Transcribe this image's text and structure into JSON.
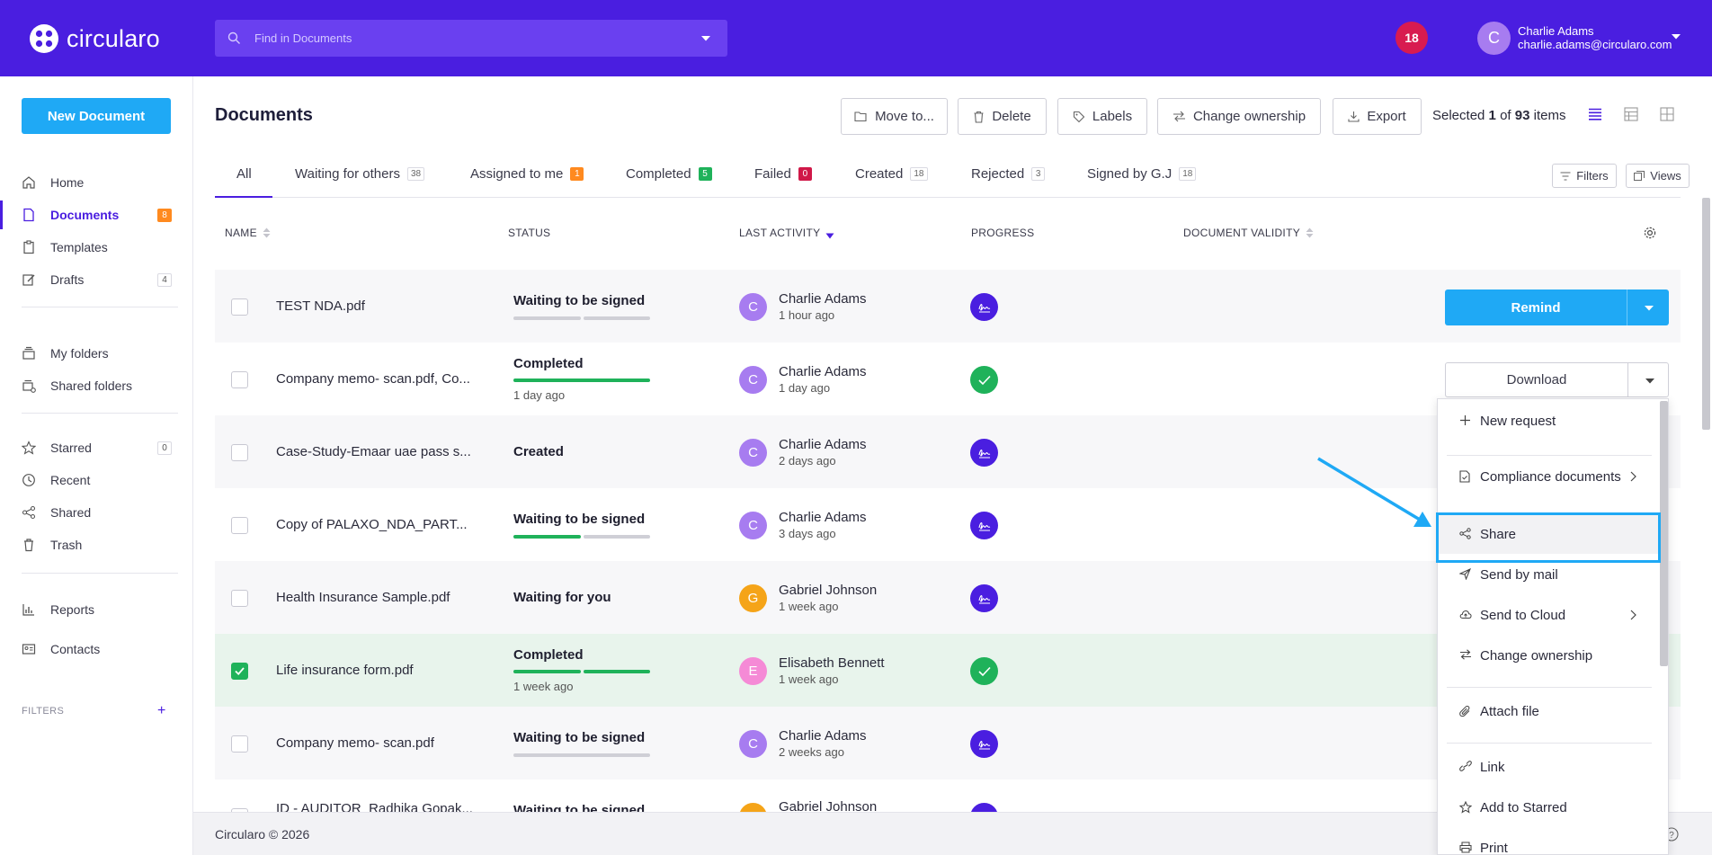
{
  "app": {
    "name": "circularo"
  },
  "search": {
    "placeholder": "Find in Documents"
  },
  "header": {
    "notifications_count": "18",
    "user": {
      "initial": "C",
      "name": "Charlie Adams",
      "email": "charlie.adams@circularo.com"
    }
  },
  "sidebar": {
    "new_document": "New Document",
    "items": [
      {
        "label": "Home",
        "icon": "home-icon"
      },
      {
        "label": "Documents",
        "icon": "document-icon",
        "badge": "8"
      },
      {
        "label": "Templates",
        "icon": "clipboard-icon"
      },
      {
        "label": "Drafts",
        "icon": "pencil-icon",
        "badge": "4"
      },
      {
        "label": "My folders",
        "icon": "folder-stack-icon"
      },
      {
        "label": "Shared folders",
        "icon": "shared-folder-icon"
      },
      {
        "label": "Starred",
        "icon": "star-icon",
        "badge": "0"
      },
      {
        "label": "Recent",
        "icon": "clock-icon"
      },
      {
        "label": "Shared",
        "icon": "share-icon"
      },
      {
        "label": "Trash",
        "icon": "trash-icon"
      },
      {
        "label": "Reports",
        "icon": "bar-chart-icon"
      },
      {
        "label": "Contacts",
        "icon": "contacts-icon"
      }
    ],
    "filters_label": "FILTERS"
  },
  "main": {
    "title": "Documents",
    "toolbar": {
      "move": "Move to...",
      "delete": "Delete",
      "labels": "Labels",
      "change_ownership": "Change ownership",
      "export": "Export"
    },
    "selection": {
      "prefix": "Selected",
      "count": "1",
      "of": "of",
      "total": "93",
      "suffix": "items"
    },
    "tabs": [
      {
        "label": "All",
        "count": ""
      },
      {
        "label": "Waiting for others",
        "count": "38"
      },
      {
        "label": "Assigned to me",
        "count": "1"
      },
      {
        "label": "Completed",
        "count": "5"
      },
      {
        "label": "Failed",
        "count": "0"
      },
      {
        "label": "Created",
        "count": "18"
      },
      {
        "label": "Rejected",
        "count": "3"
      },
      {
        "label": "Signed by G.J",
        "count": "18"
      }
    ],
    "filters_button": "Filters",
    "views_button": "Views",
    "columns": [
      "NAME",
      "STATUS",
      "LAST ACTIVITY",
      "PROGRESS",
      "DOCUMENT VALIDITY"
    ],
    "rows": [
      {
        "name": "TEST NDA.pdf",
        "status": "Waiting to be signed",
        "status_sub": "",
        "progress_fraction": 0.0,
        "user_initial": "C",
        "user": "Charlie Adams",
        "time": "1 hour ago",
        "progress_state": "signing",
        "selected": false
      },
      {
        "name": "Company memo- scan.pdf, Co...",
        "status": "Completed",
        "status_sub": "1 day ago",
        "progress_fraction": 1.0,
        "user_initial": "C",
        "user": "Charlie Adams",
        "time": "1 day ago",
        "progress_state": "done",
        "selected": false
      },
      {
        "name": "Case-Study-Emaar uae pass s...",
        "status": "Created",
        "status_sub": "",
        "progress_fraction": null,
        "user_initial": "C",
        "user": "Charlie Adams",
        "time": "2 days ago",
        "progress_state": "signing",
        "selected": false
      },
      {
        "name": "Copy of PALAXO_NDA_PART...",
        "status": "Waiting to be signed",
        "status_sub": "",
        "progress_fraction": 0.5,
        "user_initial": "C",
        "user": "Charlie Adams",
        "time": "3 days ago",
        "progress_state": "signing",
        "selected": false
      },
      {
        "name": "Health Insurance Sample.pdf",
        "status": "Waiting for you",
        "status_sub": "",
        "progress_fraction": null,
        "user_initial": "G",
        "user": "Gabriel Johnson",
        "time": "1 week ago",
        "progress_state": "signing",
        "selected": false
      },
      {
        "name": "Life insurance form.pdf",
        "status": "Completed",
        "status_sub": "1 week ago",
        "progress_fraction": 1.0,
        "user_initial": "E",
        "user": "Elisabeth Bennett",
        "time": "1 week ago",
        "progress_state": "done",
        "selected": true
      },
      {
        "name": "Company memo- scan.pdf",
        "status": "Waiting to be signed",
        "status_sub": "",
        "progress_fraction": 0.0,
        "user_initial": "C",
        "user": "Charlie Adams",
        "time": "2 weeks ago",
        "progress_state": "signing",
        "selected": false
      },
      {
        "name": "ID - AUDITOR_Radhika Gopak...",
        "status": "Waiting to be signed",
        "status_sub": "",
        "progress_fraction": null,
        "user_initial": "G",
        "user": "Gabriel Johnson",
        "time": "",
        "progress_state": "signing",
        "selected": false
      }
    ],
    "row_actions": {
      "remind": "Remind",
      "download": "Download"
    }
  },
  "menu": {
    "items": [
      {
        "label": "New request",
        "icon": "plus-icon"
      },
      {
        "label": "Compliance documents",
        "icon": "compliance-document-icon",
        "submenu": true
      },
      {
        "label": "Share",
        "icon": "share-icon",
        "highlighted": true
      },
      {
        "label": "Send by mail",
        "icon": "send-icon"
      },
      {
        "label": "Send to Cloud",
        "icon": "cloud-upload-icon",
        "submenu": true
      },
      {
        "label": "Change ownership",
        "icon": "swap-icon"
      },
      {
        "label": "Attach file",
        "icon": "paperclip-icon"
      },
      {
        "label": "Link",
        "icon": "link-icon"
      },
      {
        "label": "Add to Starred",
        "icon": "star-icon"
      },
      {
        "label": "Print",
        "icon": "print-icon"
      }
    ]
  },
  "footer": {
    "text": "Circularo © 2026"
  },
  "colors": {
    "brand": "#4a1ee0",
    "accent": "#1fa9f5",
    "success": "#1fb25a",
    "danger": "#d81b50",
    "warning": "#ff8a1f"
  }
}
